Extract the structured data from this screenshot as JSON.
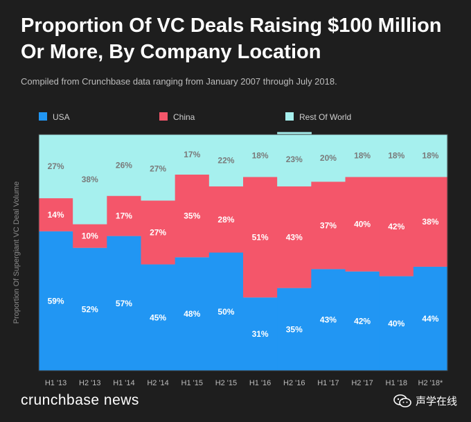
{
  "chart_data": {
    "type": "bar",
    "stacked": true,
    "normalized": true,
    "title": "Proportion Of VC Deals Raising $100 Million Or More, By Company Location",
    "subtitle": "Compiled from Crunchbase data ranging from January 2007 through July 2018.",
    "ylabel": "Proportion Of Supergiant VC Deal Volume",
    "xlabel": "",
    "ylim": [
      0,
      100
    ],
    "grid": false,
    "legend_position": "top",
    "categories": [
      "H1 '13",
      "H2 '13",
      "H1 '14",
      "H2 '14",
      "H1 '15",
      "H2 '15",
      "H1 '16",
      "H2 '16",
      "H1 '17",
      "H2 '17",
      "H1 '18",
      "H2 '18*"
    ],
    "series": [
      {
        "name": "USA",
        "color": "#2196F3",
        "values": [
          59,
          52,
          57,
          45,
          48,
          50,
          31,
          35,
          43,
          42,
          40,
          44
        ]
      },
      {
        "name": "China",
        "color": "#F4566A",
        "values": [
          14,
          10,
          17,
          27,
          35,
          28,
          51,
          43,
          37,
          40,
          42,
          38
        ]
      },
      {
        "name": "Rest Of World",
        "color": "#A6F0EE",
        "values": [
          27,
          38,
          26,
          27,
          17,
          22,
          18,
          23,
          20,
          18,
          18,
          18
        ]
      }
    ]
  },
  "footer": {
    "brand": "crunchbase news",
    "watermark": "声学在线"
  }
}
